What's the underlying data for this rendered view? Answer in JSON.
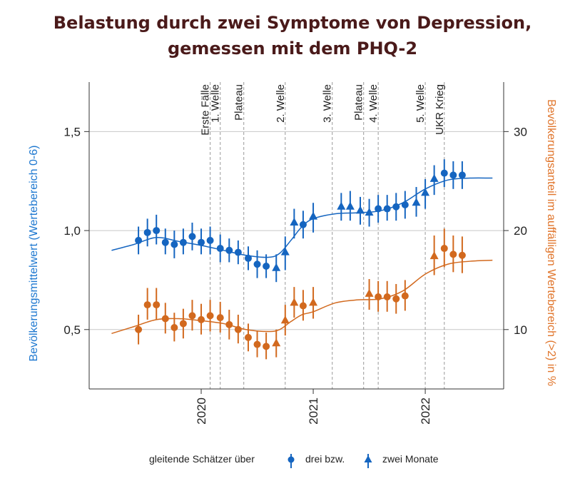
{
  "chart_data": {
    "type": "scatter",
    "title": [
      "Belastung durch zwei Symptome von Depression,",
      "gemessen mit dem PHQ-2"
    ],
    "xlim": [
      2019.0,
      2022.7
    ],
    "x_ticks": [
      2020,
      2021,
      2022
    ],
    "x_tick_labels": [
      "2020",
      "2021",
      "2022"
    ],
    "ylabel_left": "Bevölkerungsmittelwert (Wertebereich 0-6)",
    "ylim_left": [
      0.2,
      1.75
    ],
    "y_ticks_left": [
      0.5,
      1.0,
      1.5
    ],
    "y_tick_labels_left": [
      "0,5",
      "1,0",
      "1,5"
    ],
    "ylabel_right": "Bevölkerungsanteil im auffälligen Wertebereich (>2) in %",
    "ylim_right": [
      4,
      35
    ],
    "y_ticks_right": [
      10,
      20,
      30
    ],
    "y_tick_labels_right": [
      "10",
      "20",
      "30"
    ],
    "grid": true,
    "events": [
      {
        "label": "Erste Fälle",
        "x": 2020.08
      },
      {
        "label": "1. Welle",
        "x": 2020.17
      },
      {
        "label": "Plateau",
        "x": 2020.38
      },
      {
        "label": "2. Welle",
        "x": 2020.75
      },
      {
        "label": "3. Welle",
        "x": 2021.17
      },
      {
        "label": "Plateau",
        "x": 2021.45
      },
      {
        "label": "4. Welle",
        "x": 2021.58
      },
      {
        "label": "5. Welle",
        "x": 2022.0
      },
      {
        "label": "UKR Krieg",
        "x": 2022.17
      }
    ],
    "legend": {
      "position": "bottom",
      "label": "gleitende Schätzer über",
      "circle": "drei bzw.",
      "triangle": "zwei Monate"
    },
    "colors": {
      "mean": "#1565c0",
      "share": "#d2691e",
      "grid": "#c8c8c8",
      "event_line": "#999999"
    },
    "series": [
      {
        "axis": "left",
        "color": "#1565c0",
        "points": [
          {
            "x": 2019.44,
            "y": 0.95,
            "lo": 0.88,
            "hi": 1.02,
            "m": "circle"
          },
          {
            "x": 2019.52,
            "y": 0.99,
            "lo": 0.92,
            "hi": 1.06,
            "m": "circle"
          },
          {
            "x": 2019.6,
            "y": 1.0,
            "lo": 0.93,
            "hi": 1.08,
            "m": "circle"
          },
          {
            "x": 2019.68,
            "y": 0.94,
            "lo": 0.88,
            "hi": 1.01,
            "m": "circle"
          },
          {
            "x": 2019.76,
            "y": 0.93,
            "lo": 0.86,
            "hi": 1.0,
            "m": "circle"
          },
          {
            "x": 2019.84,
            "y": 0.94,
            "lo": 0.88,
            "hi": 1.01,
            "m": "circle"
          },
          {
            "x": 2019.92,
            "y": 0.97,
            "lo": 0.9,
            "hi": 1.04,
            "m": "circle"
          },
          {
            "x": 2020.0,
            "y": 0.94,
            "lo": 0.88,
            "hi": 1.01,
            "m": "circle"
          },
          {
            "x": 2020.08,
            "y": 0.95,
            "lo": 0.88,
            "hi": 1.02,
            "m": "circle"
          },
          {
            "x": 2020.17,
            "y": 0.91,
            "lo": 0.84,
            "hi": 0.98,
            "m": "circle"
          },
          {
            "x": 2020.25,
            "y": 0.9,
            "lo": 0.84,
            "hi": 0.96,
            "m": "circle"
          },
          {
            "x": 2020.33,
            "y": 0.89,
            "lo": 0.83,
            "hi": 0.95,
            "m": "circle"
          },
          {
            "x": 2020.42,
            "y": 0.86,
            "lo": 0.8,
            "hi": 0.92,
            "m": "circle"
          },
          {
            "x": 2020.5,
            "y": 0.83,
            "lo": 0.76,
            "hi": 0.9,
            "m": "circle"
          },
          {
            "x": 2020.58,
            "y": 0.82,
            "lo": 0.76,
            "hi": 0.88,
            "m": "circle"
          },
          {
            "x": 2020.67,
            "y": 0.81,
            "lo": 0.74,
            "hi": 0.88,
            "m": "triangle"
          },
          {
            "x": 2020.75,
            "y": 0.89,
            "lo": 0.8,
            "hi": 0.97,
            "m": "triangle"
          },
          {
            "x": 2020.83,
            "y": 1.04,
            "lo": 0.96,
            "hi": 1.11,
            "m": "triangle"
          },
          {
            "x": 2020.91,
            "y": 1.03,
            "lo": 0.96,
            "hi": 1.1,
            "m": "circle"
          },
          {
            "x": 2021.0,
            "y": 1.07,
            "lo": 0.99,
            "hi": 1.14,
            "m": "triangle"
          },
          {
            "x": 2021.25,
            "y": 1.12,
            "lo": 1.05,
            "hi": 1.19,
            "m": "triangle"
          },
          {
            "x": 2021.33,
            "y": 1.12,
            "lo": 1.05,
            "hi": 1.2,
            "m": "triangle"
          },
          {
            "x": 2021.42,
            "y": 1.1,
            "lo": 1.03,
            "hi": 1.17,
            "m": "triangle"
          },
          {
            "x": 2021.5,
            "y": 1.09,
            "lo": 1.02,
            "hi": 1.16,
            "m": "triangle"
          },
          {
            "x": 2021.58,
            "y": 1.11,
            "lo": 1.04,
            "hi": 1.18,
            "m": "circle"
          },
          {
            "x": 2021.66,
            "y": 1.11,
            "lo": 1.05,
            "hi": 1.18,
            "m": "circle"
          },
          {
            "x": 2021.74,
            "y": 1.12,
            "lo": 1.05,
            "hi": 1.19,
            "m": "circle"
          },
          {
            "x": 2021.82,
            "y": 1.13,
            "lo": 1.06,
            "hi": 1.2,
            "m": "circle"
          },
          {
            "x": 2021.92,
            "y": 1.14,
            "lo": 1.07,
            "hi": 1.22,
            "m": "triangle"
          },
          {
            "x": 2022.0,
            "y": 1.19,
            "lo": 1.11,
            "hi": 1.26,
            "m": "triangle"
          },
          {
            "x": 2022.08,
            "y": 1.26,
            "lo": 1.18,
            "hi": 1.33,
            "m": "triangle"
          },
          {
            "x": 2022.17,
            "y": 1.29,
            "lo": 1.22,
            "hi": 1.36,
            "m": "circle"
          },
          {
            "x": 2022.25,
            "y": 1.28,
            "lo": 1.21,
            "hi": 1.35,
            "m": "circle"
          },
          {
            "x": 2022.33,
            "y": 1.28,
            "lo": 1.21,
            "hi": 1.35,
            "m": "circle"
          }
        ],
        "trend": [
          [
            2019.2,
            0.9
          ],
          [
            2019.4,
            0.93
          ],
          [
            2019.6,
            0.965
          ],
          [
            2019.8,
            0.945
          ],
          [
            2020.0,
            0.925
          ],
          [
            2020.2,
            0.9
          ],
          [
            2020.4,
            0.875
          ],
          [
            2020.6,
            0.865
          ],
          [
            2020.7,
            0.885
          ],
          [
            2020.8,
            0.95
          ],
          [
            2020.9,
            1.02
          ],
          [
            2021.0,
            1.06
          ],
          [
            2021.2,
            1.085
          ],
          [
            2021.4,
            1.09
          ],
          [
            2021.6,
            1.1
          ],
          [
            2021.8,
            1.14
          ],
          [
            2022.0,
            1.21
          ],
          [
            2022.2,
            1.255
          ],
          [
            2022.4,
            1.265
          ],
          [
            2022.6,
            1.265
          ]
        ]
      },
      {
        "axis": "right",
        "color": "#d2691e",
        "points": [
          {
            "x": 2019.44,
            "y": 10.0,
            "lo": 8.5,
            "hi": 11.5,
            "m": "circle"
          },
          {
            "x": 2019.52,
            "y": 12.5,
            "lo": 11.0,
            "hi": 14.2,
            "m": "circle"
          },
          {
            "x": 2019.6,
            "y": 12.5,
            "lo": 11.0,
            "hi": 14.2,
            "m": "circle"
          },
          {
            "x": 2019.68,
            "y": 11.1,
            "lo": 9.6,
            "hi": 12.7,
            "m": "circle"
          },
          {
            "x": 2019.76,
            "y": 10.2,
            "lo": 8.8,
            "hi": 11.7,
            "m": "circle"
          },
          {
            "x": 2019.84,
            "y": 10.6,
            "lo": 9.1,
            "hi": 12.1,
            "m": "circle"
          },
          {
            "x": 2019.92,
            "y": 11.4,
            "lo": 9.9,
            "hi": 13.0,
            "m": "circle"
          },
          {
            "x": 2020.0,
            "y": 11.0,
            "lo": 9.5,
            "hi": 12.6,
            "m": "circle"
          },
          {
            "x": 2020.08,
            "y": 11.4,
            "lo": 9.8,
            "hi": 13.0,
            "m": "circle"
          },
          {
            "x": 2020.17,
            "y": 11.2,
            "lo": 9.7,
            "hi": 12.8,
            "m": "circle"
          },
          {
            "x": 2020.25,
            "y": 10.5,
            "lo": 9.0,
            "hi": 12.0,
            "m": "circle"
          },
          {
            "x": 2020.33,
            "y": 10.0,
            "lo": 8.6,
            "hi": 11.5,
            "m": "circle"
          },
          {
            "x": 2020.42,
            "y": 9.2,
            "lo": 7.8,
            "hi": 10.6,
            "m": "circle"
          },
          {
            "x": 2020.5,
            "y": 8.5,
            "lo": 7.2,
            "hi": 9.9,
            "m": "circle"
          },
          {
            "x": 2020.58,
            "y": 8.3,
            "lo": 7.0,
            "hi": 9.7,
            "m": "circle"
          },
          {
            "x": 2020.67,
            "y": 8.6,
            "lo": 7.2,
            "hi": 10.0,
            "m": "triangle"
          },
          {
            "x": 2020.75,
            "y": 10.9,
            "lo": 9.4,
            "hi": 12.5,
            "m": "triangle"
          },
          {
            "x": 2020.83,
            "y": 12.7,
            "lo": 11.2,
            "hi": 14.3,
            "m": "triangle"
          },
          {
            "x": 2020.91,
            "y": 12.4,
            "lo": 10.9,
            "hi": 14.0,
            "m": "circle"
          },
          {
            "x": 2021.0,
            "y": 12.7,
            "lo": 11.1,
            "hi": 14.3,
            "m": "triangle"
          },
          {
            "x": 2021.5,
            "y": 13.6,
            "lo": 12.0,
            "hi": 15.1,
            "m": "triangle"
          },
          {
            "x": 2021.58,
            "y": 13.3,
            "lo": 11.8,
            "hi": 14.9,
            "m": "circle"
          },
          {
            "x": 2021.66,
            "y": 13.3,
            "lo": 11.8,
            "hi": 14.9,
            "m": "circle"
          },
          {
            "x": 2021.74,
            "y": 13.1,
            "lo": 11.6,
            "hi": 14.6,
            "m": "circle"
          },
          {
            "x": 2021.82,
            "y": 13.4,
            "lo": 11.9,
            "hi": 15.0,
            "m": "circle"
          },
          {
            "x": 2022.08,
            "y": 17.4,
            "lo": 15.5,
            "hi": 19.5,
            "m": "triangle"
          },
          {
            "x": 2022.17,
            "y": 18.2,
            "lo": 16.3,
            "hi": 20.2,
            "m": "circle"
          },
          {
            "x": 2022.25,
            "y": 17.6,
            "lo": 15.8,
            "hi": 19.5,
            "m": "circle"
          },
          {
            "x": 2022.33,
            "y": 17.5,
            "lo": 15.7,
            "hi": 19.4,
            "m": "circle"
          }
        ],
        "trend": [
          [
            2019.2,
            9.6
          ],
          [
            2019.4,
            10.3
          ],
          [
            2019.6,
            11.0
          ],
          [
            2019.8,
            11.1
          ],
          [
            2020.0,
            10.9
          ],
          [
            2020.2,
            10.6
          ],
          [
            2020.4,
            10.0
          ],
          [
            2020.6,
            9.8
          ],
          [
            2020.7,
            10.0
          ],
          [
            2020.8,
            10.8
          ],
          [
            2020.9,
            11.5
          ],
          [
            2021.0,
            11.8
          ],
          [
            2021.2,
            12.7
          ],
          [
            2021.4,
            13.0
          ],
          [
            2021.6,
            13.1
          ],
          [
            2021.8,
            13.9
          ],
          [
            2022.0,
            15.6
          ],
          [
            2022.2,
            16.6
          ],
          [
            2022.4,
            16.9
          ],
          [
            2022.6,
            17.0
          ]
        ]
      }
    ]
  }
}
